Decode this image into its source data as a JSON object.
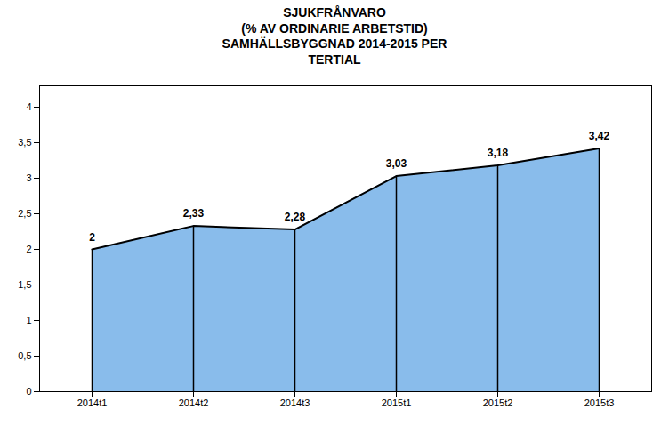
{
  "chart_data": {
    "type": "area",
    "title": "SJUKFRÅNVARO\n(% AV ORDINARIE ARBETSTID)\nSAMHÄLLSBYGGNAD 2014-2015 PER\nTERTIAL",
    "categories": [
      "2014t1",
      "2014t2",
      "2014t3",
      "2015t1",
      "2015t2",
      "2015t3"
    ],
    "values": [
      2.0,
      2.33,
      2.28,
      3.03,
      3.18,
      3.42
    ],
    "value_labels": [
      "2",
      "2,33",
      "2,28",
      "3,03",
      "3,18",
      "3,42"
    ],
    "data_labels": true,
    "ylim": [
      0,
      4.3
    ],
    "yticks": [
      0,
      {
        "value": 0.5,
        "label": "0,5"
      },
      1,
      {
        "value": 1.5,
        "label": "1,5"
      },
      2,
      {
        "value": 2.5,
        "label": "2,5"
      },
      3,
      {
        "value": 3.5,
        "label": "3,5"
      },
      4
    ],
    "color": "#89BCEB",
    "grid": false
  }
}
